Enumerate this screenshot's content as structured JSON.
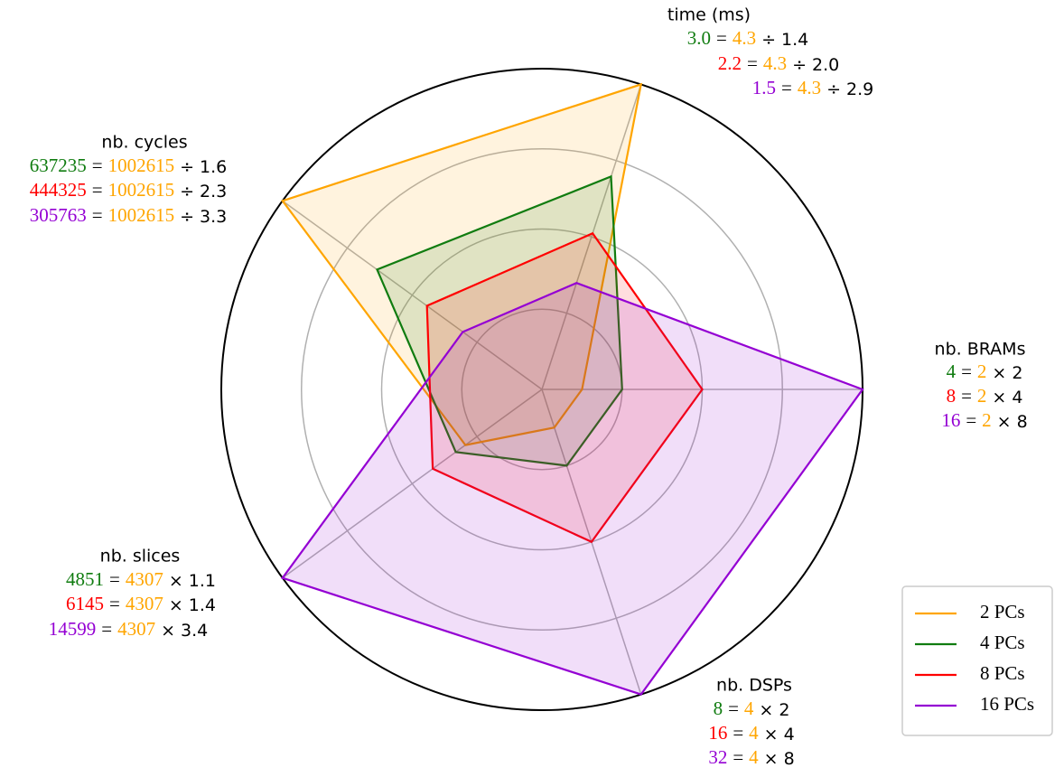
{
  "chart_data": {
    "type": "radar",
    "axes": [
      {
        "title": "nb. BRAMs",
        "lines": [
          {
            "result": "4",
            "eq": "=",
            "base": "2",
            "op": "×",
            "factor": "2"
          },
          {
            "result": "8",
            "eq": "=",
            "base": "2",
            "op": "×",
            "factor": "4"
          },
          {
            "result": "16",
            "eq": "=",
            "base": "2",
            "op": "×",
            "factor": "8"
          }
        ]
      },
      {
        "title": "time (ms)",
        "lines": [
          {
            "result": "3.0",
            "eq": "=",
            "base": "4.3",
            "op": "÷",
            "factor": "1.4"
          },
          {
            "result": "2.2",
            "eq": "=",
            "base": "4.3",
            "op": "÷",
            "factor": "2.0"
          },
          {
            "result": "1.5",
            "eq": "=",
            "base": "4.3",
            "op": "÷",
            "factor": "2.9"
          }
        ]
      },
      {
        "title": "nb. cycles",
        "lines": [
          {
            "result": "637235",
            "eq": "=",
            "base": "1002615",
            "op": "÷",
            "factor": "1.6"
          },
          {
            "result": "444325",
            "eq": "=",
            "base": "1002615",
            "op": "÷",
            "factor": "2.3"
          },
          {
            "result": "305763",
            "eq": "=",
            "base": "1002615",
            "op": "÷",
            "factor": "3.3"
          }
        ]
      },
      {
        "title": "nb. slices",
        "lines": [
          {
            "result": "4851",
            "eq": "=",
            "base": "4307",
            "op": "×",
            "factor": "1.1"
          },
          {
            "result": "6145",
            "eq": "=",
            "base": "4307",
            "op": "×",
            "factor": "1.4"
          },
          {
            "result": "14599",
            "eq": "=",
            "base": "4307",
            "op": "×",
            "factor": "3.4"
          }
        ]
      },
      {
        "title": "nb. DSPs",
        "lines": [
          {
            "result": "8",
            "eq": "=",
            "base": "4",
            "op": "×",
            "factor": "2"
          },
          {
            "result": "16",
            "eq": "=",
            "base": "4",
            "op": "×",
            "factor": "4"
          },
          {
            "result": "32",
            "eq": "=",
            "base": "4",
            "op": "×",
            "factor": "8"
          }
        ]
      }
    ],
    "series": [
      {
        "name": "2 PCs",
        "color": "#ffa500",
        "values": [
          2,
          4.3,
          1002615,
          4307,
          4
        ]
      },
      {
        "name": "4 PCs",
        "color": "#107c10",
        "values": [
          4,
          3.0,
          637235,
          4851,
          8
        ]
      },
      {
        "name": "8 PCs",
        "color": "#ff0000",
        "values": [
          8,
          2.2,
          444325,
          6145,
          16
        ]
      },
      {
        "name": "16 PCs",
        "color": "#9400d3",
        "values": [
          16,
          1.5,
          305763,
          14599,
          32
        ]
      }
    ],
    "legend": "lower right"
  }
}
